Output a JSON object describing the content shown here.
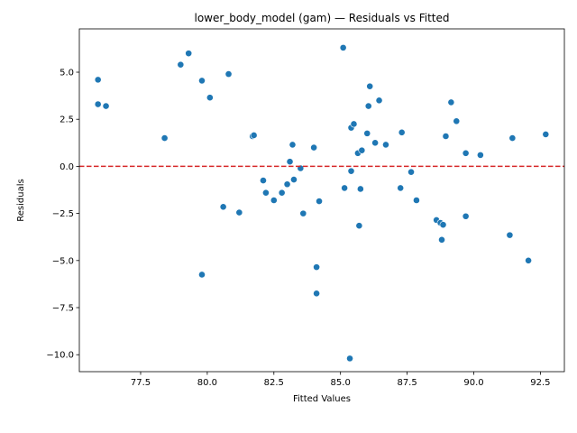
{
  "chart_data": {
    "type": "scatter",
    "title": "lower_body_model (gam) — Residuals vs Fitted",
    "xlabel": "Fitted Values",
    "ylabel": "Residuals",
    "xlim": [
      75.2,
      93.4
    ],
    "ylim": [
      -10.9,
      7.3
    ],
    "xticks": [
      77.5,
      80.0,
      82.5,
      85.0,
      87.5,
      90.0,
      92.5
    ],
    "xtick_labels": [
      "77.5",
      "80.0",
      "82.5",
      "85.0",
      "87.5",
      "90.0",
      "92.5"
    ],
    "yticks": [
      -10.0,
      -7.5,
      -5.0,
      -2.5,
      0.0,
      2.5,
      5.0
    ],
    "ytick_labels": [
      "−10.0",
      "−7.5",
      "−5.0",
      "−2.5",
      "0.0",
      "2.5",
      "5.0"
    ],
    "grid": false,
    "point_color": "#1f77b4",
    "reference_line": {
      "y": 0,
      "color": "#d62728",
      "style": "dashed"
    },
    "points": [
      {
        "x": 75.9,
        "y": 4.6
      },
      {
        "x": 75.9,
        "y": 3.3
      },
      {
        "x": 76.2,
        "y": 3.2
      },
      {
        "x": 78.4,
        "y": 1.5
      },
      {
        "x": 79.0,
        "y": 5.4
      },
      {
        "x": 79.3,
        "y": 6.0
      },
      {
        "x": 79.8,
        "y": 4.55
      },
      {
        "x": 80.1,
        "y": 3.65
      },
      {
        "x": 80.8,
        "y": 4.9
      },
      {
        "x": 79.8,
        "y": -5.75
      },
      {
        "x": 80.6,
        "y": -2.15
      },
      {
        "x": 81.2,
        "y": -2.45
      },
      {
        "x": 81.7,
        "y": 1.6
      },
      {
        "x": 81.75,
        "y": 1.65
      },
      {
        "x": 82.1,
        "y": -0.75
      },
      {
        "x": 82.2,
        "y": -1.4
      },
      {
        "x": 82.5,
        "y": -1.8
      },
      {
        "x": 82.8,
        "y": -1.4
      },
      {
        "x": 83.0,
        "y": -0.95
      },
      {
        "x": 83.1,
        "y": 0.25
      },
      {
        "x": 83.2,
        "y": 1.15
      },
      {
        "x": 83.25,
        "y": -0.7
      },
      {
        "x": 83.5,
        "y": -0.1
      },
      {
        "x": 83.6,
        "y": -2.5
      },
      {
        "x": 84.0,
        "y": 1.0
      },
      {
        "x": 84.1,
        "y": -5.35
      },
      {
        "x": 84.1,
        "y": -6.75
      },
      {
        "x": 84.2,
        "y": -1.85
      },
      {
        "x": 85.1,
        "y": 6.3
      },
      {
        "x": 85.15,
        "y": -1.15
      },
      {
        "x": 85.4,
        "y": 2.05
      },
      {
        "x": 85.4,
        "y": -0.25
      },
      {
        "x": 85.5,
        "y": 2.25
      },
      {
        "x": 85.65,
        "y": 0.7
      },
      {
        "x": 85.7,
        "y": -3.15
      },
      {
        "x": 85.75,
        "y": -1.2
      },
      {
        "x": 85.8,
        "y": 0.85
      },
      {
        "x": 86.0,
        "y": 1.75
      },
      {
        "x": 86.05,
        "y": 3.2
      },
      {
        "x": 86.1,
        "y": 4.25
      },
      {
        "x": 86.3,
        "y": 1.25
      },
      {
        "x": 86.45,
        "y": 3.5
      },
      {
        "x": 86.7,
        "y": 1.15
      },
      {
        "x": 85.35,
        "y": -10.2
      },
      {
        "x": 87.25,
        "y": -1.15
      },
      {
        "x": 87.3,
        "y": 1.8
      },
      {
        "x": 87.65,
        "y": -0.3
      },
      {
        "x": 87.85,
        "y": -1.8
      },
      {
        "x": 88.6,
        "y": -2.85
      },
      {
        "x": 88.75,
        "y": -3.0
      },
      {
        "x": 88.85,
        "y": -3.1
      },
      {
        "x": 88.8,
        "y": -3.9
      },
      {
        "x": 88.95,
        "y": 1.6
      },
      {
        "x": 89.15,
        "y": 3.4
      },
      {
        "x": 89.35,
        "y": 2.4
      },
      {
        "x": 89.7,
        "y": 0.7
      },
      {
        "x": 89.7,
        "y": -2.65
      },
      {
        "x": 90.25,
        "y": 0.6
      },
      {
        "x": 91.35,
        "y": -3.65
      },
      {
        "x": 91.45,
        "y": 1.5
      },
      {
        "x": 92.05,
        "y": -5.0
      },
      {
        "x": 92.7,
        "y": 1.7
      }
    ]
  }
}
